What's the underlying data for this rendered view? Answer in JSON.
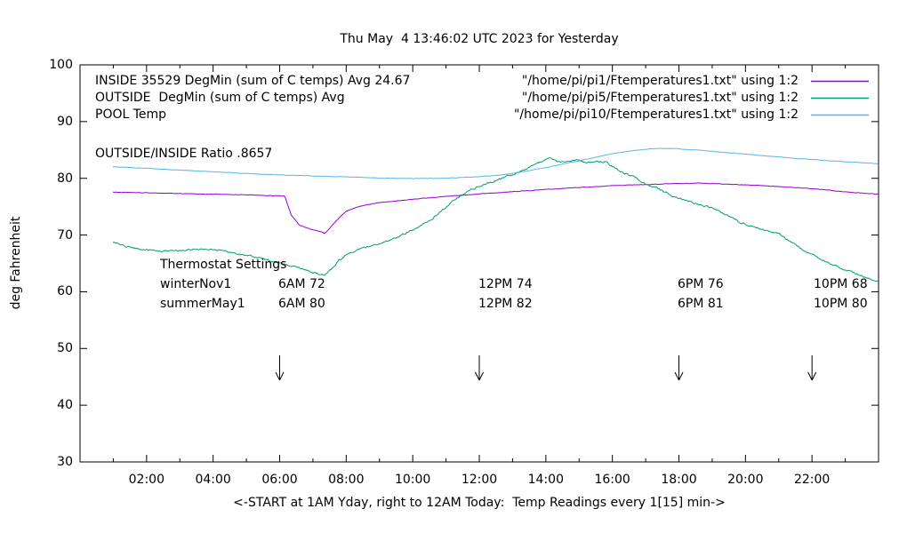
{
  "chart_data": {
    "type": "line",
    "title": "Thu May  4 13:46:02 UTC 2023 for Yesterday",
    "xlabel": "<-START at 1AM Yday, right to 12AM Today:  Temp Readings every 1[15] min->",
    "ylabel": "deg Fahrenheit",
    "xlim": [
      0,
      24
    ],
    "ylim": [
      30,
      100
    ],
    "grid": false,
    "legend_position": "top-right inside",
    "x_major_tick_hours": [
      2,
      4,
      6,
      8,
      10,
      12,
      14,
      16,
      18,
      20,
      22
    ],
    "x_tick_labels": [
      "02:00",
      "04:00",
      "06:00",
      "08:00",
      "10:00",
      "12:00",
      "14:00",
      "16:00",
      "18:00",
      "20:00",
      "22:00"
    ],
    "x_minor_tick_hours": [
      1,
      3,
      5,
      7,
      9,
      11,
      13,
      15,
      17,
      19,
      21,
      23
    ],
    "y_ticks": [
      30,
      40,
      50,
      60,
      70,
      80,
      90,
      100
    ],
    "series": [
      {
        "name": "INSIDE",
        "label": "INSIDE 35529 DegMin (sum of C temps) Avg 24.67",
        "file": "\"/home/pi/pi1/Ftemperatures1.txt\" using 1:2",
        "color": "#9400D3",
        "noise": 0.08,
        "points": [
          [
            1,
            77.55
          ],
          [
            2,
            77.45
          ],
          [
            3,
            77.3
          ],
          [
            4,
            77.2
          ],
          [
            5,
            77.1
          ],
          [
            6,
            76.9
          ],
          [
            6.15,
            76.85
          ],
          [
            6.35,
            73.5
          ],
          [
            6.6,
            71.7
          ],
          [
            7,
            70.9
          ],
          [
            7.25,
            70.6
          ],
          [
            7.35,
            70.2
          ],
          [
            7.5,
            71.2
          ],
          [
            7.75,
            72.8
          ],
          [
            8,
            74.2
          ],
          [
            8.3,
            74.9
          ],
          [
            8.6,
            75.3
          ],
          [
            9,
            75.7
          ],
          [
            9.5,
            76.0
          ],
          [
            10,
            76.3
          ],
          [
            10.5,
            76.55
          ],
          [
            11,
            76.8
          ],
          [
            11.5,
            77.0
          ],
          [
            12,
            77.25
          ],
          [
            13,
            77.65
          ],
          [
            14,
            78.05
          ],
          [
            15,
            78.4
          ],
          [
            16,
            78.7
          ],
          [
            17,
            78.9
          ],
          [
            18,
            79.1
          ],
          [
            18.6,
            79.15
          ],
          [
            19,
            79.05
          ],
          [
            20,
            78.85
          ],
          [
            21,
            78.55
          ],
          [
            22,
            78.2
          ],
          [
            22.7,
            77.8
          ],
          [
            23,
            77.6
          ],
          [
            24,
            77.2
          ]
        ]
      },
      {
        "name": "OUTSIDE",
        "label": "OUTSIDE  DegMin (sum of C temps) Avg",
        "file": "\"/home/pi/pi5/Ftemperatures1.txt\" using 1:2",
        "color": "#009E73",
        "noise": 0.3,
        "points": [
          [
            1,
            68.6
          ],
          [
            1.3,
            68.1
          ],
          [
            1.7,
            67.6
          ],
          [
            2,
            67.4
          ],
          [
            2.4,
            67.1
          ],
          [
            2.8,
            67.2
          ],
          [
            3.2,
            67.4
          ],
          [
            3.6,
            67.5
          ],
          [
            4,
            67.4
          ],
          [
            4.4,
            67.1
          ],
          [
            4.8,
            66.6
          ],
          [
            5.2,
            66.1
          ],
          [
            5.6,
            65.7
          ],
          [
            6,
            65.1
          ],
          [
            6.4,
            64.5
          ],
          [
            6.8,
            63.8
          ],
          [
            7.1,
            63.2
          ],
          [
            7.35,
            62.9
          ],
          [
            7.6,
            64.2
          ],
          [
            7.8,
            65.6
          ],
          [
            8,
            66.6
          ],
          [
            8.3,
            67.4
          ],
          [
            8.6,
            67.9
          ],
          [
            9,
            68.5
          ],
          [
            9.4,
            69.3
          ],
          [
            9.8,
            70.4
          ],
          [
            10.2,
            71.6
          ],
          [
            10.6,
            73.0
          ],
          [
            11,
            74.9
          ],
          [
            11.4,
            76.8
          ],
          [
            11.8,
            78.1
          ],
          [
            12.2,
            79.0
          ],
          [
            12.6,
            79.8
          ],
          [
            13,
            80.7
          ],
          [
            13.4,
            81.6
          ],
          [
            13.8,
            82.8
          ],
          [
            14.1,
            83.5
          ],
          [
            14.3,
            83.0
          ],
          [
            14.6,
            82.9
          ],
          [
            14.9,
            83.3
          ],
          [
            15.2,
            82.7
          ],
          [
            15.5,
            83.1
          ],
          [
            15.8,
            82.9
          ],
          [
            16.1,
            81.7
          ],
          [
            16.4,
            80.7
          ],
          [
            16.7,
            80.2
          ],
          [
            17,
            78.9
          ],
          [
            17.4,
            78.1
          ],
          [
            17.8,
            76.9
          ],
          [
            18.2,
            76.1
          ],
          [
            18.6,
            75.4
          ],
          [
            19,
            74.8
          ],
          [
            19.4,
            73.6
          ],
          [
            19.8,
            72.3
          ],
          [
            20.2,
            71.5
          ],
          [
            20.6,
            70.9
          ],
          [
            21,
            70.2
          ],
          [
            21.4,
            68.6
          ],
          [
            21.8,
            67.1
          ],
          [
            22.2,
            65.9
          ],
          [
            22.6,
            64.8
          ],
          [
            23,
            63.9
          ],
          [
            23.4,
            63.0
          ],
          [
            23.8,
            62.2
          ],
          [
            24,
            61.8
          ]
        ]
      },
      {
        "name": "POOL",
        "label": "POOL Temp",
        "file": "\"/home/pi/pi10/Ftemperatures1.txt\" using 1:2",
        "color": "#56B4E9",
        "noise": 0.07,
        "points": [
          [
            1,
            82.05
          ],
          [
            2,
            81.75
          ],
          [
            3,
            81.45
          ],
          [
            4,
            81.15
          ],
          [
            5,
            80.85
          ],
          [
            6,
            80.6
          ],
          [
            7,
            80.4
          ],
          [
            8,
            80.25
          ],
          [
            9,
            80.05
          ],
          [
            10,
            79.95
          ],
          [
            11,
            80.0
          ],
          [
            12,
            80.3
          ],
          [
            12.5,
            80.5
          ],
          [
            13,
            80.85
          ],
          [
            13.5,
            81.35
          ],
          [
            14,
            81.9
          ],
          [
            14.5,
            82.5
          ],
          [
            15,
            83.1
          ],
          [
            15.5,
            83.7
          ],
          [
            16,
            84.35
          ],
          [
            16.5,
            84.8
          ],
          [
            17,
            85.1
          ],
          [
            17.4,
            85.3
          ],
          [
            18,
            85.2
          ],
          [
            18.5,
            85.0
          ],
          [
            19,
            84.75
          ],
          [
            20,
            84.25
          ],
          [
            21,
            83.75
          ],
          [
            22,
            83.3
          ],
          [
            23,
            82.9
          ],
          [
            24,
            82.6
          ]
        ]
      }
    ],
    "annotations": {
      "ratio_text": "OUTSIDE/INSIDE Ratio .8657",
      "thermostat": {
        "heading": "Thermostat Settings",
        "rows": [
          {
            "cells": [
              "winterNov1",
              "6AM 72",
              "12PM 74",
              "6PM 76",
              "10PM 68"
            ]
          },
          {
            "cells": [
              "summerMay1",
              "6AM 80",
              "12PM 82",
              "6PM 81",
              "10PM 80"
            ]
          }
        ]
      },
      "arrow_hours": [
        6,
        12,
        18,
        22
      ]
    }
  }
}
